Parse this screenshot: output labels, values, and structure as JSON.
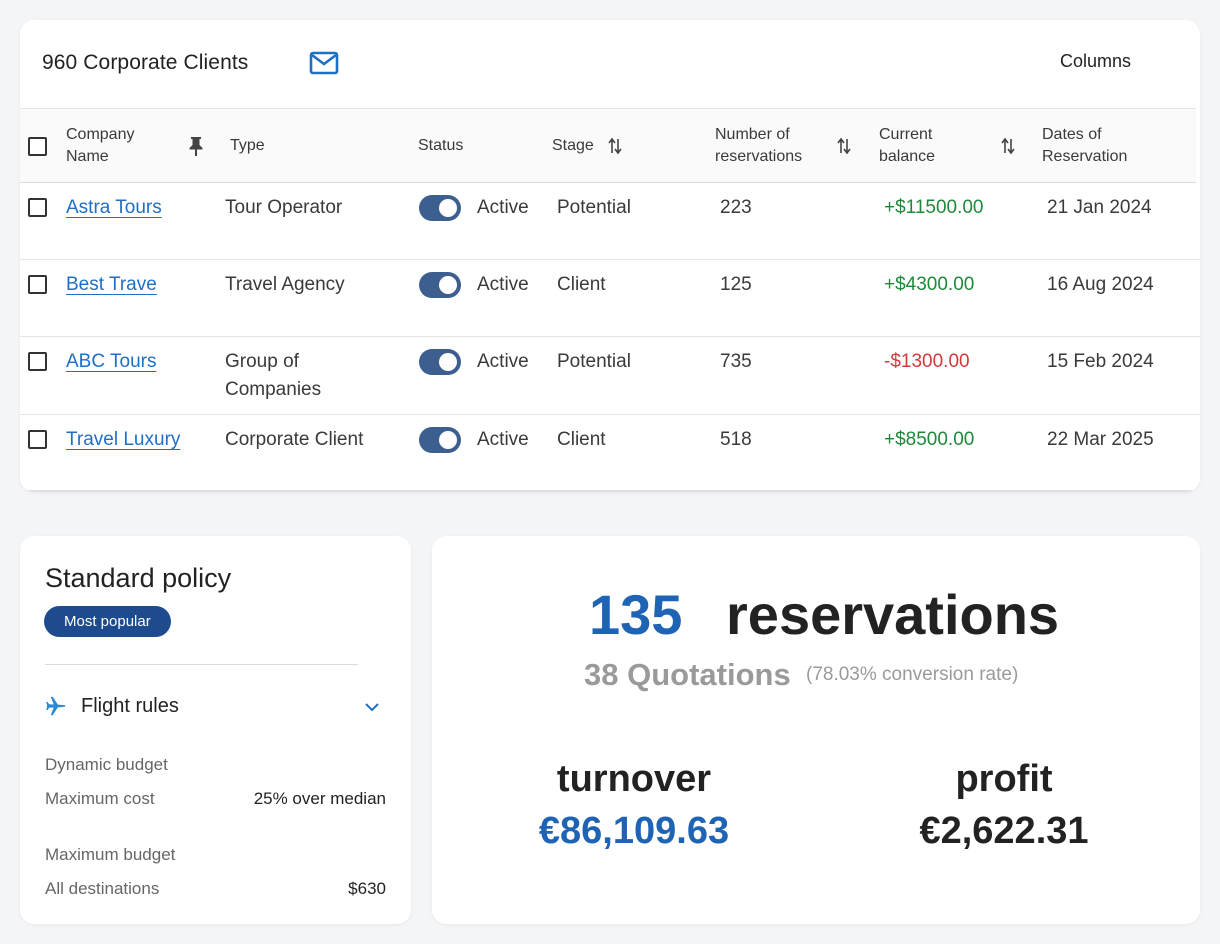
{
  "table_card": {
    "title": "960 Corporate Clients",
    "mail_icon": "mail-icon",
    "columns_label": "Columns",
    "headers": {
      "company_name": "Company Name",
      "type": "Type",
      "status": "Status",
      "stage": "Stage",
      "reservations": "Number of reservations",
      "balance": "Current balance",
      "dates": "Dates of Reservation"
    },
    "rows": [
      {
        "company": "Astra Tours",
        "type": "Tour Operator",
        "status": "Active",
        "stage": "Potential",
        "reservations": "223",
        "balance": "+$11500.00",
        "date": "21 Jan 2024"
      },
      {
        "company": "Best Trave",
        "type": "Travel Agency",
        "status": "Active",
        "stage": "Client",
        "reservations": "125",
        "balance": "+$4300.00",
        "date": "16 Aug 2024"
      },
      {
        "company": "ABC Tours",
        "type": "Group of Companies",
        "status": "Active",
        "stage": "Potential",
        "reservations": "735",
        "balance": "-$1300.00",
        "date": "15 Feb 2024"
      },
      {
        "company": "Travel Luxury",
        "type": "Corporate Client",
        "status": "Active",
        "stage": "Client",
        "reservations": "518",
        "balance": "+$8500.00",
        "date": "22 Mar 2025"
      }
    ]
  },
  "policy_card": {
    "title": "Standard policy",
    "badge": "Most popular",
    "section_title": "Flight rules",
    "section_icon": "airplane-icon",
    "dynamic_budget_label": "Dynamic budget",
    "max_cost_label": "Maximum cost",
    "max_cost_value": "25% over median",
    "max_budget_label": "Maximum budget",
    "all_destinations_label": "All destinations",
    "all_destinations_value": "$630"
  },
  "stats_card": {
    "reservations_count": "135",
    "reservations_label": "reservations",
    "quotations": "38 Quotations",
    "conversion": "(78.03% conversion rate)",
    "turnover_label": "turnover",
    "turnover_value": "€86,109.63",
    "profit_label": "profit",
    "profit_value": "€2,622.31"
  },
  "colors": {
    "accent_blue": "#1f63b5",
    "link_blue": "#1f6fc5",
    "toggle": "#3d5f8f",
    "badge": "#1d4b8e",
    "positive": "#1e8a3a",
    "negative": "#d3393a"
  }
}
